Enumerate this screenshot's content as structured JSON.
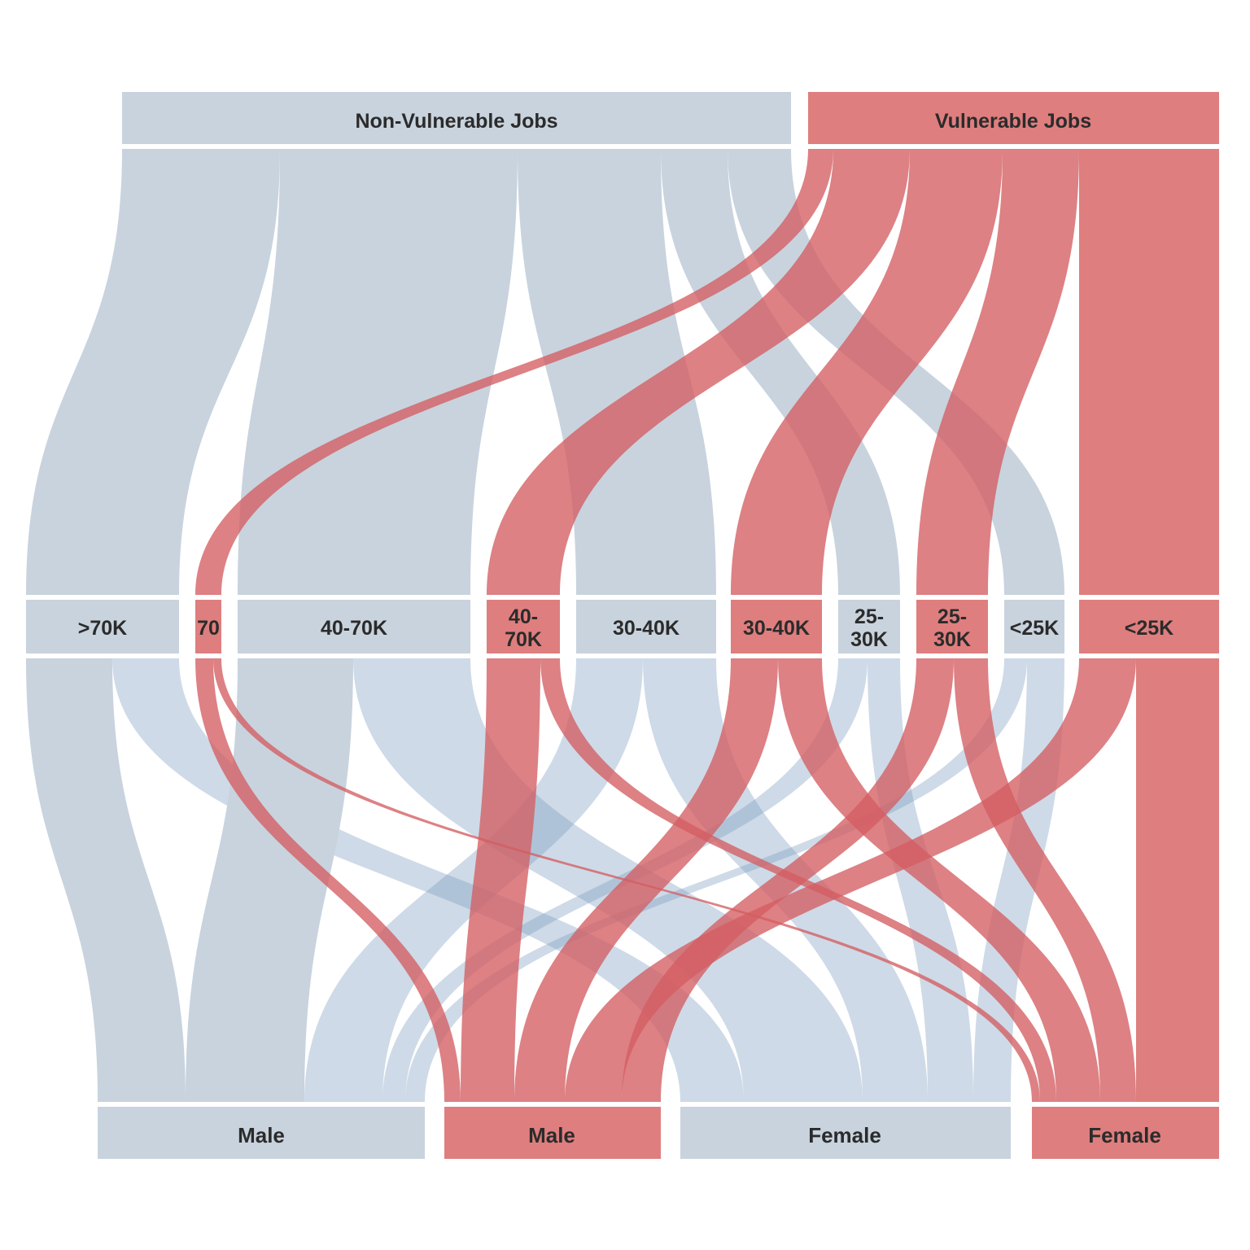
{
  "colors": {
    "non_vulnerable": "#c8d3de",
    "vulnerable": "#df7e7e",
    "flow_non_vulnerable": "#c8d3de",
    "flow_vulnerable": "#d35d62",
    "flow_overlap_blue": "#7d9fc0",
    "label_text": "#2b2b2b"
  },
  "top": [
    {
      "id": "nv",
      "label": "Non-Vulnerable Jobs",
      "group": "non_vulnerable"
    },
    {
      "id": "v",
      "label": "Vulnerable Jobs",
      "group": "vulnerable"
    }
  ],
  "middle": [
    {
      "id": "nv70",
      "label": ">70K",
      "group": "non_vulnerable"
    },
    {
      "id": "v70",
      "label": "70",
      "group": "vulnerable"
    },
    {
      "id": "nv4070",
      "label": "40-70K",
      "group": "non_vulnerable"
    },
    {
      "id": "v4070",
      "label": "40-70K",
      "group": "vulnerable"
    },
    {
      "id": "nv3040",
      "label": "30-40K",
      "group": "non_vulnerable"
    },
    {
      "id": "v3040",
      "label": "30-40K",
      "group": "vulnerable"
    },
    {
      "id": "nv2530",
      "label": "25-30K",
      "group": "non_vulnerable"
    },
    {
      "id": "v2530",
      "label": "25-30K",
      "group": "vulnerable"
    },
    {
      "id": "nv25",
      "label": "<25K",
      "group": "non_vulnerable"
    },
    {
      "id": "v25",
      "label": "<25K",
      "group": "vulnerable"
    }
  ],
  "bottom": [
    {
      "id": "nvm",
      "label": "Male",
      "group": "non_vulnerable"
    },
    {
      "id": "vm",
      "label": "Male",
      "group": "vulnerable"
    },
    {
      "id": "nvf",
      "label": "Female",
      "group": "non_vulnerable"
    },
    {
      "id": "vf",
      "label": "Female",
      "group": "vulnerable"
    }
  ]
}
